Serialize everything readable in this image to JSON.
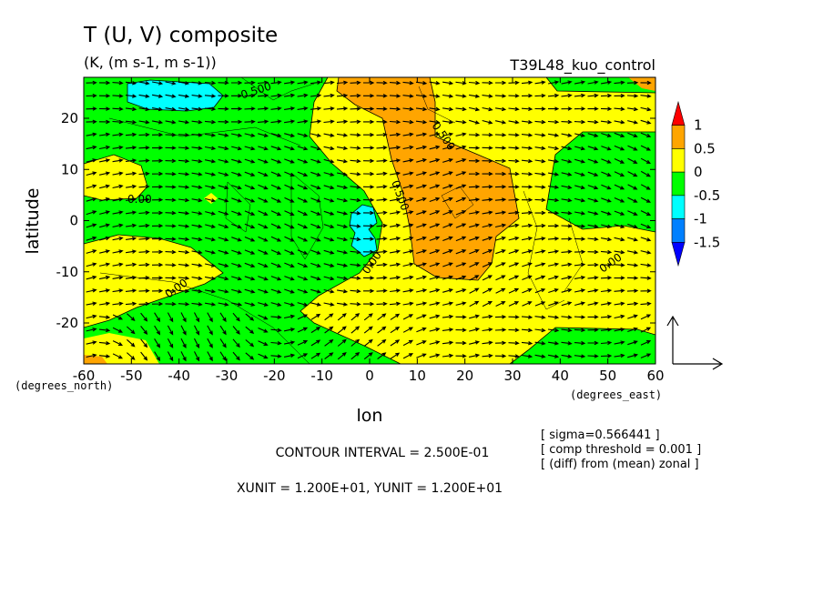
{
  "chart_data": {
    "type": "heatmap",
    "title": "T (U, V) composite",
    "subtitle": "(K, (m s-1, m s-1))",
    "run_label": "T39L48_kuo_control",
    "xlabel": "lon",
    "ylabel": "latitude",
    "x_unit_label": "(degrees_east)",
    "y_unit_label": "(degrees_north)",
    "xlim": [
      -60,
      60
    ],
    "ylim": [
      -28,
      28
    ],
    "x_ticks": [
      "-60",
      "-50",
      "-40",
      "-30",
      "-20",
      "-10",
      "0",
      "10",
      "20",
      "30",
      "40",
      "50",
      "60"
    ],
    "y_ticks": [
      "20",
      "10",
      "0",
      "-10",
      "-20"
    ],
    "colorbar": {
      "levels": [
        "1",
        "0.5",
        "0",
        "-0.5",
        "-1",
        "-1.5"
      ],
      "colors": [
        "#ff0000",
        "#ffa500",
        "#ffff00",
        "#00ff00",
        "#00ffff",
        "#0080ff",
        "#0000ff"
      ]
    },
    "contour_labels": [
      "-0.500",
      "0.500",
      "0.500",
      "0.00",
      "0.00",
      "0.00",
      "0.00"
    ],
    "notes": [
      "[ sigma=0.566441 ]",
      "[ comp threshold = 0.001 ]",
      "[ (diff) from (mean) zonal ]"
    ],
    "contour_interval": "CONTOUR INTERVAL = 2.500E-01",
    "vector_units": "XUNIT = 1.200E+01, YUNIT = 1.200E+01",
    "grid": false
  }
}
